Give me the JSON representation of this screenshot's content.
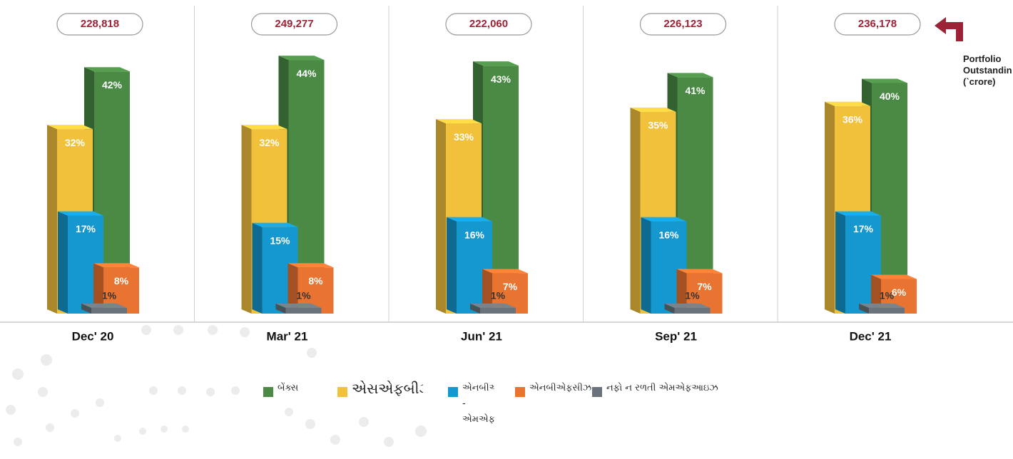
{
  "chart_data": {
    "type": "bar3d",
    "categories": [
      "Dec' 20",
      "Mar' 21",
      "Jun' 21",
      "Sep' 21",
      "Dec' 21"
    ],
    "ylim": [
      0,
      45
    ],
    "portfolio": {
      "name": "Portfolio Outstanding (`crore)",
      "values": [
        228818,
        249277,
        222060,
        226123,
        236178
      ],
      "value_labels": [
        "228,818",
        "249,277",
        "222,060",
        "226,123",
        "236,178"
      ]
    },
    "series": [
      {
        "name": "બેંક્સ",
        "color": "#4a8a45",
        "values": [
          42,
          44,
          43,
          41,
          40
        ],
        "value_labels": [
          "42%",
          "44%",
          "43%",
          "41%",
          "40%"
        ]
      },
      {
        "name": "એસએફબીઝ",
        "color": "#f2c13c",
        "values": [
          32,
          32,
          33,
          35,
          36
        ],
        "value_labels": [
          "32%",
          "32%",
          "33%",
          "35%",
          "36%"
        ]
      },
      {
        "name": "એનબીએફસી - એમએફઆઇઝ",
        "color": "#1597cf",
        "values": [
          17,
          15,
          16,
          16,
          17
        ],
        "value_labels": [
          "17%",
          "15%",
          "16%",
          "16%",
          "17%"
        ]
      },
      {
        "name": "એનબીએફસીઝ",
        "color": "#e97331",
        "values": [
          8,
          8,
          7,
          7,
          6
        ],
        "value_labels": [
          "8%",
          "8%",
          "7%",
          "7%",
          "6%"
        ]
      },
      {
        "name": "નફો ન રળતી એમએફઆઇઝ",
        "color": "#6a737b",
        "values": [
          1,
          1,
          1,
          1,
          1
        ],
        "value_labels": [
          "1%",
          "1%",
          "1%",
          "1%",
          "1%"
        ]
      }
    ]
  }
}
